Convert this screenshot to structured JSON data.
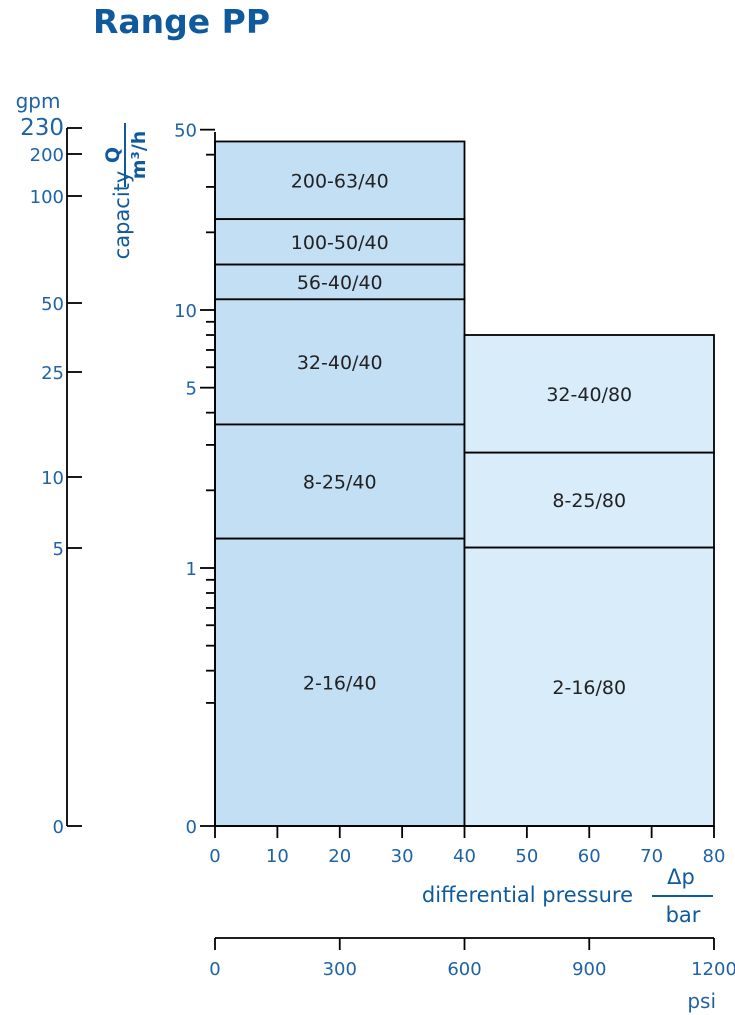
{
  "title": "Range PP",
  "chart_data": {
    "type": "area",
    "regions": [
      {
        "label": "200-63/40",
        "x0": 0,
        "x1": 40,
        "y0": 22.5,
        "y1": 45
      },
      {
        "label": "100-50/40",
        "x0": 0,
        "x1": 40,
        "y0": 15,
        "y1": 22.5
      },
      {
        "label": "56-40/40",
        "x0": 0,
        "x1": 40,
        "y0": 11,
        "y1": 15
      },
      {
        "label": "32-40/40",
        "x0": 0,
        "x1": 40,
        "y0": 3.6,
        "y1": 11
      },
      {
        "label": "8-25/40",
        "x0": 0,
        "x1": 40,
        "y0": 1.3,
        "y1": 3.6
      },
      {
        "label": "2-16/40",
        "x0": 0,
        "x1": 40,
        "y0": 0,
        "y1": 1.3
      },
      {
        "label": "32-40/80",
        "x0": 40,
        "x1": 80,
        "y0": 2.8,
        "y1": 8
      },
      {
        "label": "8-25/80",
        "x0": 40,
        "x1": 80,
        "y0": 1.2,
        "y1": 2.8
      },
      {
        "label": "2-16/80",
        "x0": 40,
        "x1": 80,
        "y0": 0,
        "y1": 1.2
      }
    ],
    "x_axis": {
      "label": "differential pressure",
      "unit_numerator": "Δp",
      "unit_denominator": "bar",
      "range": [
        0,
        80
      ],
      "ticks": [
        0,
        10,
        20,
        30,
        40,
        50,
        60,
        70,
        80
      ]
    },
    "x_axis_secondary": {
      "unit": "psi",
      "range": [
        0,
        1200
      ],
      "ticks": [
        0,
        300,
        600,
        900,
        1200
      ]
    },
    "y_axis": {
      "label": "capacity",
      "unit_numerator": "Q",
      "unit_denominator": "m³/h",
      "scale": "log",
      "range": [
        0,
        50
      ],
      "tick_labels": [
        {
          "value": 0,
          "text": "0"
        },
        {
          "value": 1,
          "text": "1"
        },
        {
          "value": 5,
          "text": "5"
        },
        {
          "value": 10,
          "text": "10"
        },
        {
          "value": 50,
          "text": "50"
        }
      ],
      "minor_ticks": [
        0.3,
        0.4,
        0.5,
        0.6,
        0.7,
        0.8,
        0.9,
        2,
        3,
        4,
        6,
        7,
        8,
        9,
        20,
        30,
        40
      ]
    },
    "y_axis_secondary": {
      "unit": "gpm",
      "tick_labels": [
        {
          "value": 230,
          "text": "230"
        },
        {
          "value": 200,
          "text": "200"
        },
        {
          "value": 100,
          "text": "100"
        },
        {
          "value": 50,
          "text": "50"
        },
        {
          "value": 25,
          "text": "25"
        },
        {
          "value": 10,
          "text": "10"
        },
        {
          "value": 5,
          "text": "5"
        },
        {
          "value": 0,
          "text": "0"
        }
      ]
    },
    "colors": {
      "left_fill": "#c3dff4",
      "right_fill": "#d8ecf9",
      "axis": "#000000",
      "text": "#1f63a6",
      "title": "#0f5a9c"
    }
  }
}
